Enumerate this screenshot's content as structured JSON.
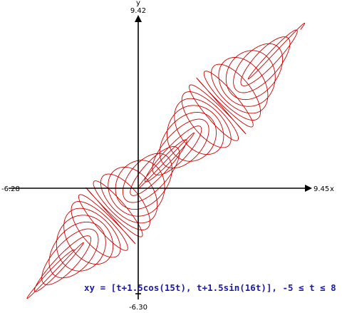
{
  "chart_data": {
    "type": "line",
    "title": "",
    "xlabel": "x",
    "ylabel": "y",
    "xlim": [
      -6.28,
      9.45
    ],
    "ylim": [
      -6.3,
      9.42
    ],
    "x_tick_labels": {
      "min": "-6.28",
      "max": "9.45"
    },
    "y_tick_labels": {
      "min": "-6.30",
      "max": "9.42"
    },
    "grid": false,
    "legend": "none",
    "annotation": "xy = [t+1.5cos(15t), t+1.5sin(16t)], -5 ≤ t ≤ 8",
    "series": [
      {
        "parametric": true,
        "x_of_t": "t+1.5cos(15t)",
        "y_of_t": "t+1.5sin(16t)",
        "t_range": [
          -5,
          8
        ],
        "color": "#cc0000"
      }
    ]
  },
  "colors": {
    "curve": "#cc0000",
    "axes": "#000000",
    "equation": "#1a1aa6"
  }
}
